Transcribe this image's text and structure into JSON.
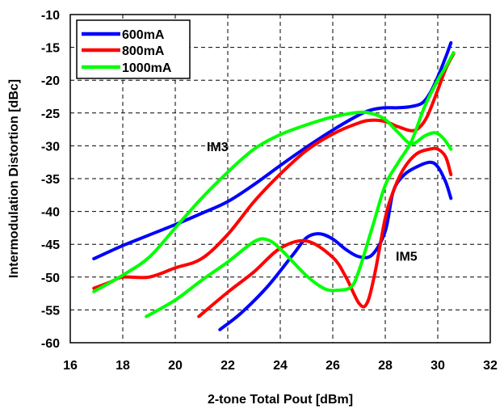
{
  "chart_data": {
    "type": "line",
    "title": "",
    "xlabel": "2-tone Total Pout  [dBm]",
    "ylabel": "Intermodulation Distortion  [dBc]",
    "xlim": [
      16,
      32
    ],
    "ylim": [
      -60,
      -10
    ],
    "xticks": [
      16,
      18,
      20,
      22,
      24,
      26,
      28,
      30,
      32
    ],
    "yticks": [
      -10,
      -15,
      -20,
      -25,
      -30,
      -35,
      -40,
      -45,
      -50,
      -55,
      -60
    ],
    "grid": true,
    "legend_position": "top-left",
    "annotations": [
      {
        "text": "IM3",
        "x": 21.2,
        "y": -30.8
      },
      {
        "text": "IM5",
        "x": 28.4,
        "y": -47.5
      }
    ],
    "series": [
      {
        "name": "600mA",
        "color": "#0000ff",
        "im3": [
          [
            16.9,
            -47.2
          ],
          [
            18,
            -45.2
          ],
          [
            19,
            -43.6
          ],
          [
            20,
            -42
          ],
          [
            21,
            -40.3
          ],
          [
            22,
            -38.5
          ],
          [
            23,
            -35.9
          ],
          [
            24,
            -33
          ],
          [
            25,
            -30.2
          ],
          [
            26,
            -27.6
          ],
          [
            27,
            -25.3
          ],
          [
            27.5,
            -24.5
          ],
          [
            28,
            -24.2
          ],
          [
            28.5,
            -24.2
          ],
          [
            29,
            -24
          ],
          [
            29.4,
            -23.5
          ],
          [
            29.7,
            -22
          ],
          [
            30,
            -19.5
          ],
          [
            30.3,
            -16.5
          ],
          [
            30.5,
            -14.3
          ]
        ],
        "im5": [
          [
            21.7,
            -58
          ],
          [
            22.5,
            -55.5
          ],
          [
            23.5,
            -51.5
          ],
          [
            24.5,
            -46.5
          ],
          [
            25,
            -44
          ],
          [
            25.5,
            -43.4
          ],
          [
            26,
            -44.2
          ],
          [
            26.5,
            -45.8
          ],
          [
            27,
            -46.9
          ],
          [
            27.5,
            -46.6
          ],
          [
            28,
            -43
          ],
          [
            28.3,
            -37
          ],
          [
            28.7,
            -34.5
          ],
          [
            29.2,
            -33.2
          ],
          [
            29.7,
            -32.5
          ],
          [
            30,
            -33.2
          ],
          [
            30.3,
            -35.5
          ],
          [
            30.5,
            -38
          ]
        ]
      },
      {
        "name": "800mA",
        "color": "#ff0000",
        "im3": [
          [
            16.9,
            -51.7
          ],
          [
            17.5,
            -50.8
          ],
          [
            18,
            -50
          ],
          [
            19,
            -50
          ],
          [
            20,
            -48.6
          ],
          [
            21,
            -47.2
          ],
          [
            22,
            -43.5
          ],
          [
            23,
            -38.5
          ],
          [
            24,
            -34.3
          ],
          [
            25,
            -30.7
          ],
          [
            26,
            -28.2
          ],
          [
            27,
            -26.5
          ],
          [
            27.5,
            -26.1
          ],
          [
            28,
            -26.3
          ],
          [
            28.5,
            -27.1
          ],
          [
            29,
            -27.7
          ],
          [
            29.3,
            -27.2
          ],
          [
            29.6,
            -25.5
          ],
          [
            30,
            -21.5
          ],
          [
            30.3,
            -18.3
          ],
          [
            30.6,
            -16
          ]
        ],
        "im5": [
          [
            20.9,
            -56
          ],
          [
            22,
            -52.3
          ],
          [
            23,
            -49.2
          ],
          [
            24,
            -45.6
          ],
          [
            25,
            -44.5
          ],
          [
            26,
            -47
          ],
          [
            26.5,
            -50
          ],
          [
            27,
            -54
          ],
          [
            27.3,
            -54
          ],
          [
            27.6,
            -49.5
          ],
          [
            28,
            -41
          ],
          [
            28.3,
            -37
          ],
          [
            28.7,
            -33.5
          ],
          [
            29.2,
            -31.2
          ],
          [
            29.7,
            -30.5
          ],
          [
            30,
            -30.5
          ],
          [
            30.3,
            -31.7
          ],
          [
            30.5,
            -34.4
          ]
        ]
      },
      {
        "name": "1000mA",
        "color": "#00ff00",
        "im3": [
          [
            16.9,
            -52.2
          ],
          [
            18,
            -49.7
          ],
          [
            19,
            -47
          ],
          [
            20,
            -42.5
          ],
          [
            21,
            -38
          ],
          [
            22,
            -34
          ],
          [
            23,
            -30.5
          ],
          [
            24,
            -28.3
          ],
          [
            25,
            -26.8
          ],
          [
            26,
            -25.6
          ],
          [
            27,
            -24.9
          ],
          [
            27.5,
            -25.1
          ],
          [
            28,
            -26
          ],
          [
            28.5,
            -28
          ],
          [
            29,
            -29.7
          ],
          [
            29.5,
            -28.5
          ],
          [
            29.9,
            -28
          ],
          [
            30.2,
            -28.8
          ],
          [
            30.5,
            -30.5
          ]
        ],
        "im5": [
          [
            18.9,
            -56
          ],
          [
            20,
            -53.5
          ],
          [
            21,
            -50.5
          ],
          [
            22,
            -47.7
          ],
          [
            23,
            -44.6
          ],
          [
            23.5,
            -44.3
          ],
          [
            24,
            -45.7
          ],
          [
            25,
            -49.8
          ],
          [
            25.7,
            -51.8
          ],
          [
            26.2,
            -52
          ],
          [
            26.7,
            -51.5
          ],
          [
            27,
            -49
          ],
          [
            27.5,
            -42.5
          ],
          [
            28,
            -36
          ],
          [
            28.5,
            -32.5
          ],
          [
            29,
            -29.3
          ],
          [
            29.5,
            -24
          ],
          [
            30,
            -20
          ],
          [
            30.3,
            -18
          ],
          [
            30.6,
            -15.8
          ]
        ]
      }
    ]
  }
}
